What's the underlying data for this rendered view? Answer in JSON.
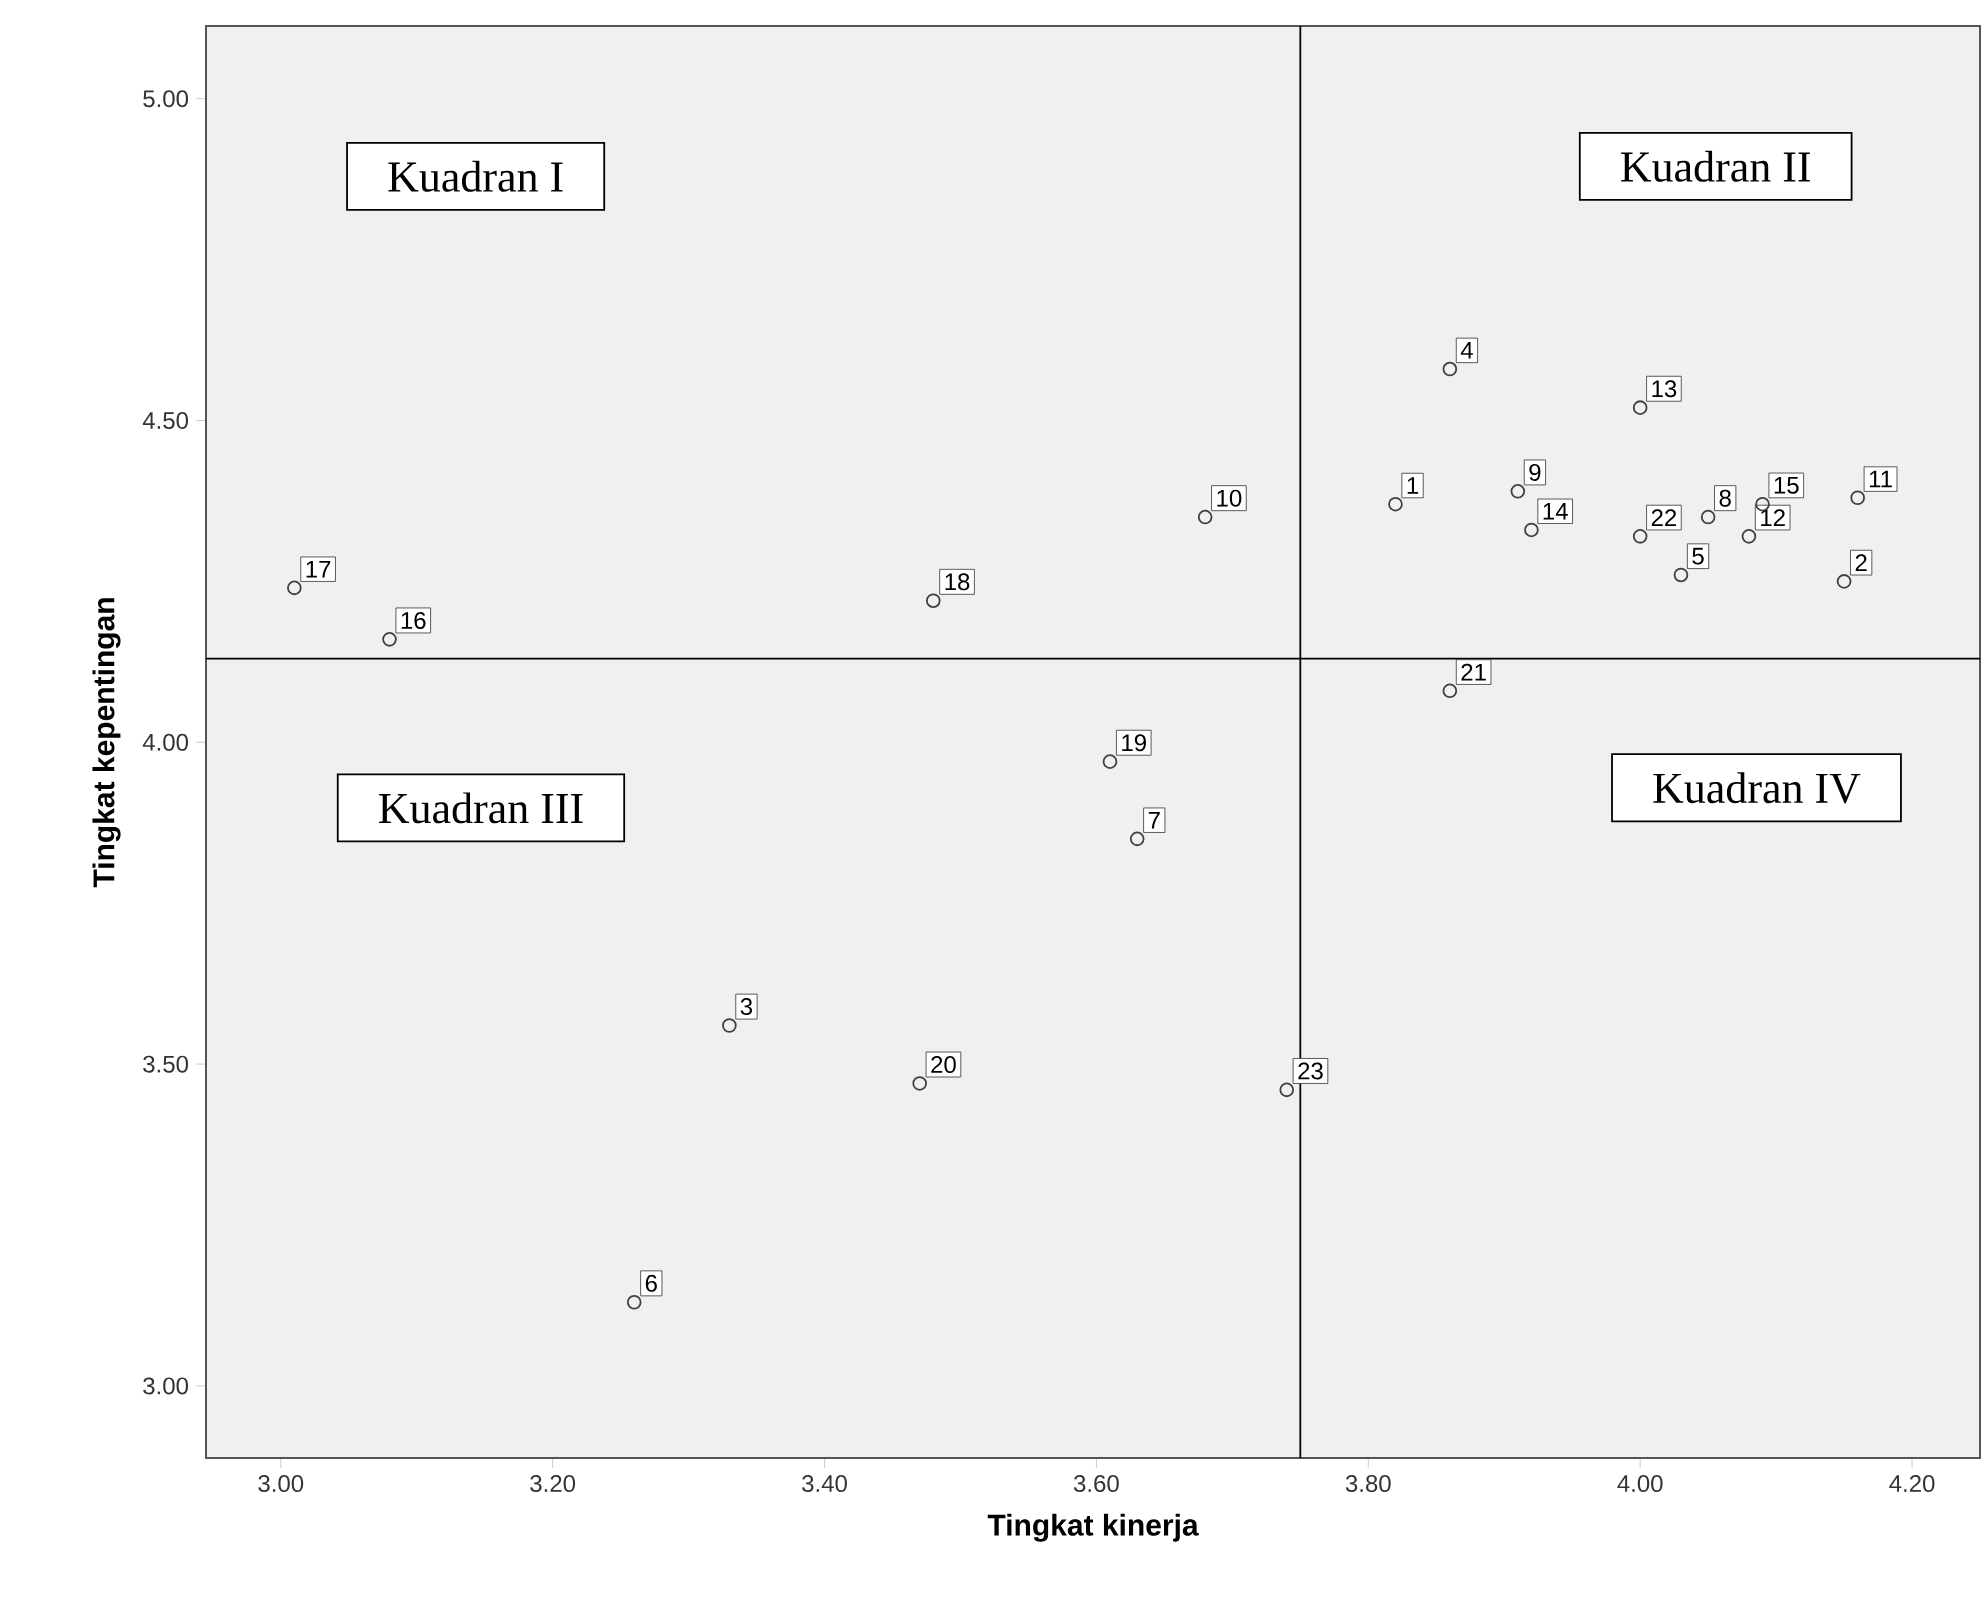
{
  "chart_data": {
    "type": "scatter",
    "xlabel": "Tingkat kinerja",
    "ylabel": "Tingkat kepentingan",
    "x": [
      3.82,
      4.15,
      3.33,
      3.86,
      4.03,
      3.26,
      3.63,
      4.05,
      3.91,
      3.68,
      4.16,
      4.08,
      4.0,
      3.92,
      4.09,
      3.08,
      3.01,
      3.48,
      3.61,
      3.47,
      3.86,
      4.0,
      3.74
    ],
    "values": [
      4.37,
      4.25,
      3.56,
      4.58,
      4.26,
      3.13,
      3.85,
      4.35,
      4.39,
      4.35,
      4.38,
      4.32,
      4.52,
      4.33,
      4.37,
      4.16,
      4.24,
      4.22,
      3.97,
      3.47,
      4.08,
      4.32,
      3.46
    ],
    "color": "#404040",
    "marker": "circle",
    "xlim": [
      2.945,
      4.25
    ],
    "ylim": [
      2.888,
      5.113
    ],
    "xticks": [
      {
        "value": 3.0,
        "label": "3.00"
      },
      {
        "value": 3.2,
        "label": "3.20"
      },
      {
        "value": 3.4,
        "label": "3.40"
      },
      {
        "value": 3.6,
        "label": "3.60"
      },
      {
        "value": 3.8,
        "label": "3.80"
      },
      {
        "value": 4.0,
        "label": "4.00"
      },
      {
        "value": 4.2,
        "label": "4.20"
      }
    ],
    "yticks": [
      {
        "value": 3.0,
        "label": "3.00"
      },
      {
        "value": 3.5,
        "label": "3.50"
      },
      {
        "value": 4.0,
        "label": "4.00"
      },
      {
        "value": 4.5,
        "label": "4.50"
      },
      {
        "value": 5.0,
        "label": "5.00"
      }
    ],
    "ref_lines": [
      {
        "axis": "y",
        "value": 4.13,
        "color": "#000000"
      },
      {
        "axis": "x",
        "value": 3.75,
        "color": "#000000"
      }
    ],
    "annotations": [
      "Kuadran I",
      "Kuadran II",
      "Kuadran III",
      "Kuadran IV",
      {
        "text": "1",
        "x": 3.82,
        "y": 4.37
      },
      {
        "text": "2",
        "x": 4.15,
        "y": 4.25
      },
      {
        "text": "3",
        "x": 3.33,
        "y": 3.56
      },
      {
        "text": "4",
        "x": 3.86,
        "y": 4.58
      },
      {
        "text": "5",
        "x": 4.03,
        "y": 4.26
      },
      {
        "text": "6",
        "x": 3.26,
        "y": 3.13
      },
      {
        "text": "7",
        "x": 3.63,
        "y": 3.85
      },
      {
        "text": "8",
        "x": 4.05,
        "y": 4.35
      },
      {
        "text": "9",
        "x": 3.91,
        "y": 4.39
      },
      {
        "text": "10",
        "x": 3.68,
        "y": 4.35
      },
      {
        "text": "11",
        "x": 4.16,
        "y": 4.38
      },
      {
        "text": "12",
        "x": 4.08,
        "y": 4.32
      },
      {
        "text": "13",
        "x": 4.0,
        "y": 4.52
      },
      {
        "text": "14",
        "x": 3.92,
        "y": 4.33
      },
      {
        "text": "15",
        "x": 4.09,
        "y": 4.37
      },
      {
        "text": "16",
        "x": 3.08,
        "y": 4.16
      },
      {
        "text": "17",
        "x": 3.01,
        "y": 4.24
      },
      {
        "text": "18",
        "x": 3.48,
        "y": 4.22
      },
      {
        "text": "19",
        "x": 3.61,
        "y": 3.97
      },
      {
        "text": "20",
        "x": 3.47,
        "y": 3.47
      },
      {
        "text": "21",
        "x": 3.86,
        "y": 4.08
      },
      {
        "text": "22",
        "x": 4.0,
        "y": 4.32
      },
      {
        "text": "23",
        "x": 3.74,
        "y": 3.46
      }
    ]
  }
}
